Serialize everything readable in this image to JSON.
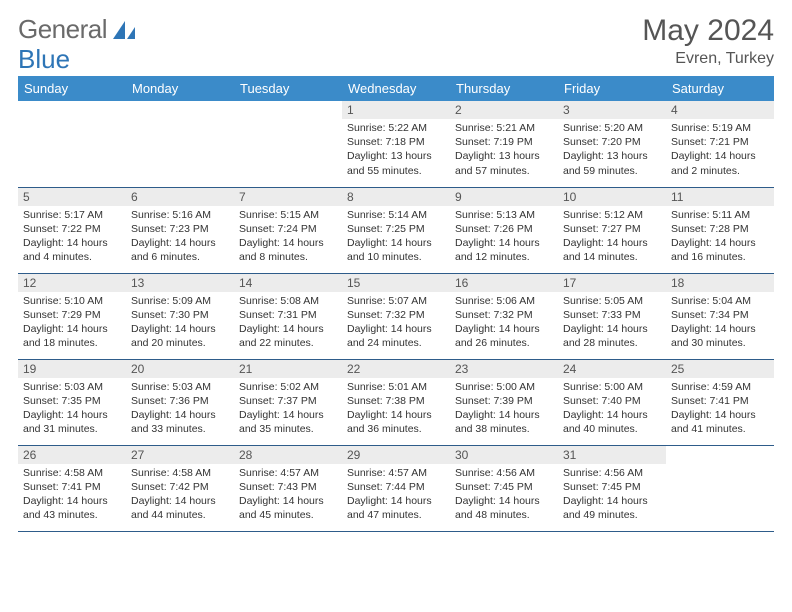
{
  "brand": {
    "part1": "General",
    "part2": "Blue"
  },
  "title": "May 2024",
  "location": "Evren, Turkey",
  "header_bg": "#3b8bc9",
  "header_fg": "#ffffff",
  "daynum_bg": "#ececec",
  "row_border": "#2e5c8a",
  "dayHeaders": [
    "Sunday",
    "Monday",
    "Tuesday",
    "Wednesday",
    "Thursday",
    "Friday",
    "Saturday"
  ],
  "weeks": [
    [
      {
        "n": "",
        "sr": "",
        "ss": "",
        "dl": ""
      },
      {
        "n": "",
        "sr": "",
        "ss": "",
        "dl": ""
      },
      {
        "n": "",
        "sr": "",
        "ss": "",
        "dl": ""
      },
      {
        "n": "1",
        "sr": "Sunrise: 5:22 AM",
        "ss": "Sunset: 7:18 PM",
        "dl": "Daylight: 13 hours and 55 minutes."
      },
      {
        "n": "2",
        "sr": "Sunrise: 5:21 AM",
        "ss": "Sunset: 7:19 PM",
        "dl": "Daylight: 13 hours and 57 minutes."
      },
      {
        "n": "3",
        "sr": "Sunrise: 5:20 AM",
        "ss": "Sunset: 7:20 PM",
        "dl": "Daylight: 13 hours and 59 minutes."
      },
      {
        "n": "4",
        "sr": "Sunrise: 5:19 AM",
        "ss": "Sunset: 7:21 PM",
        "dl": "Daylight: 14 hours and 2 minutes."
      }
    ],
    [
      {
        "n": "5",
        "sr": "Sunrise: 5:17 AM",
        "ss": "Sunset: 7:22 PM",
        "dl": "Daylight: 14 hours and 4 minutes."
      },
      {
        "n": "6",
        "sr": "Sunrise: 5:16 AM",
        "ss": "Sunset: 7:23 PM",
        "dl": "Daylight: 14 hours and 6 minutes."
      },
      {
        "n": "7",
        "sr": "Sunrise: 5:15 AM",
        "ss": "Sunset: 7:24 PM",
        "dl": "Daylight: 14 hours and 8 minutes."
      },
      {
        "n": "8",
        "sr": "Sunrise: 5:14 AM",
        "ss": "Sunset: 7:25 PM",
        "dl": "Daylight: 14 hours and 10 minutes."
      },
      {
        "n": "9",
        "sr": "Sunrise: 5:13 AM",
        "ss": "Sunset: 7:26 PM",
        "dl": "Daylight: 14 hours and 12 minutes."
      },
      {
        "n": "10",
        "sr": "Sunrise: 5:12 AM",
        "ss": "Sunset: 7:27 PM",
        "dl": "Daylight: 14 hours and 14 minutes."
      },
      {
        "n": "11",
        "sr": "Sunrise: 5:11 AM",
        "ss": "Sunset: 7:28 PM",
        "dl": "Daylight: 14 hours and 16 minutes."
      }
    ],
    [
      {
        "n": "12",
        "sr": "Sunrise: 5:10 AM",
        "ss": "Sunset: 7:29 PM",
        "dl": "Daylight: 14 hours and 18 minutes."
      },
      {
        "n": "13",
        "sr": "Sunrise: 5:09 AM",
        "ss": "Sunset: 7:30 PM",
        "dl": "Daylight: 14 hours and 20 minutes."
      },
      {
        "n": "14",
        "sr": "Sunrise: 5:08 AM",
        "ss": "Sunset: 7:31 PM",
        "dl": "Daylight: 14 hours and 22 minutes."
      },
      {
        "n": "15",
        "sr": "Sunrise: 5:07 AM",
        "ss": "Sunset: 7:32 PM",
        "dl": "Daylight: 14 hours and 24 minutes."
      },
      {
        "n": "16",
        "sr": "Sunrise: 5:06 AM",
        "ss": "Sunset: 7:32 PM",
        "dl": "Daylight: 14 hours and 26 minutes."
      },
      {
        "n": "17",
        "sr": "Sunrise: 5:05 AM",
        "ss": "Sunset: 7:33 PM",
        "dl": "Daylight: 14 hours and 28 minutes."
      },
      {
        "n": "18",
        "sr": "Sunrise: 5:04 AM",
        "ss": "Sunset: 7:34 PM",
        "dl": "Daylight: 14 hours and 30 minutes."
      }
    ],
    [
      {
        "n": "19",
        "sr": "Sunrise: 5:03 AM",
        "ss": "Sunset: 7:35 PM",
        "dl": "Daylight: 14 hours and 31 minutes."
      },
      {
        "n": "20",
        "sr": "Sunrise: 5:03 AM",
        "ss": "Sunset: 7:36 PM",
        "dl": "Daylight: 14 hours and 33 minutes."
      },
      {
        "n": "21",
        "sr": "Sunrise: 5:02 AM",
        "ss": "Sunset: 7:37 PM",
        "dl": "Daylight: 14 hours and 35 minutes."
      },
      {
        "n": "22",
        "sr": "Sunrise: 5:01 AM",
        "ss": "Sunset: 7:38 PM",
        "dl": "Daylight: 14 hours and 36 minutes."
      },
      {
        "n": "23",
        "sr": "Sunrise: 5:00 AM",
        "ss": "Sunset: 7:39 PM",
        "dl": "Daylight: 14 hours and 38 minutes."
      },
      {
        "n": "24",
        "sr": "Sunrise: 5:00 AM",
        "ss": "Sunset: 7:40 PM",
        "dl": "Daylight: 14 hours and 40 minutes."
      },
      {
        "n": "25",
        "sr": "Sunrise: 4:59 AM",
        "ss": "Sunset: 7:41 PM",
        "dl": "Daylight: 14 hours and 41 minutes."
      }
    ],
    [
      {
        "n": "26",
        "sr": "Sunrise: 4:58 AM",
        "ss": "Sunset: 7:41 PM",
        "dl": "Daylight: 14 hours and 43 minutes."
      },
      {
        "n": "27",
        "sr": "Sunrise: 4:58 AM",
        "ss": "Sunset: 7:42 PM",
        "dl": "Daylight: 14 hours and 44 minutes."
      },
      {
        "n": "28",
        "sr": "Sunrise: 4:57 AM",
        "ss": "Sunset: 7:43 PM",
        "dl": "Daylight: 14 hours and 45 minutes."
      },
      {
        "n": "29",
        "sr": "Sunrise: 4:57 AM",
        "ss": "Sunset: 7:44 PM",
        "dl": "Daylight: 14 hours and 47 minutes."
      },
      {
        "n": "30",
        "sr": "Sunrise: 4:56 AM",
        "ss": "Sunset: 7:45 PM",
        "dl": "Daylight: 14 hours and 48 minutes."
      },
      {
        "n": "31",
        "sr": "Sunrise: 4:56 AM",
        "ss": "Sunset: 7:45 PM",
        "dl": "Daylight: 14 hours and 49 minutes."
      },
      {
        "n": "",
        "sr": "",
        "ss": "",
        "dl": ""
      }
    ]
  ]
}
